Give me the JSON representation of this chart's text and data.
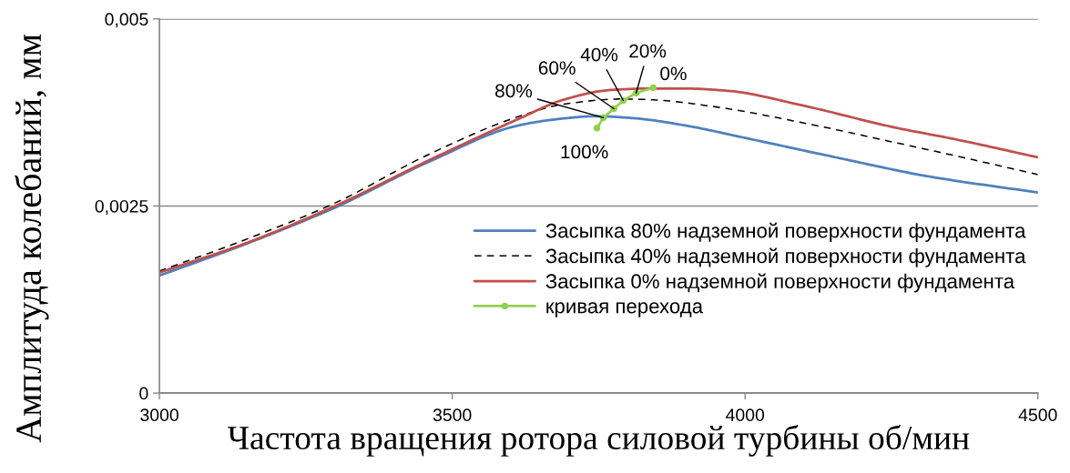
{
  "chart_data": {
    "type": "line",
    "xlabel": "Частота вращения ротора силовой турбины об/мин",
    "ylabel": "Амплитуда колебаний, мм",
    "xlim": [
      3000,
      4500
    ],
    "xticks": [
      3000,
      3500,
      4000,
      4500
    ],
    "ylim": [
      0,
      0.005
    ],
    "yticks": [
      0,
      {
        "value": 0.0025,
        "label": "0,0025"
      },
      {
        "value": 0.005,
        "label": "0,005"
      }
    ],
    "grid": "y",
    "legend": "bottom right",
    "series": [
      {
        "name": "Засыпка 80% надземной поверхности фундамента",
        "color": "#4f81bd",
        "line_style": "solid",
        "marker": "none",
        "x": [
          3000,
          3150,
          3300,
          3460,
          3615,
          3690,
          3745,
          3815,
          3895,
          4000,
          4155,
          4310,
          4500
        ],
        "values": [
          0.00157,
          0.002,
          0.00248,
          0.00309,
          0.00358,
          0.00367,
          0.0037,
          0.00367,
          0.00358,
          0.00341,
          0.00315,
          0.0029,
          0.00268
        ]
      },
      {
        "name": "Засыпка 40% надземной поверхности фундамента",
        "color": "#000000",
        "line_style": "dashed",
        "marker": "none",
        "x": [
          3000,
          3150,
          3300,
          3460,
          3615,
          3690,
          3790,
          3840,
          3945,
          4100,
          4255,
          4360,
          4500
        ],
        "values": [
          0.00163,
          0.00206,
          0.00254,
          0.00319,
          0.0037,
          0.00386,
          0.00393,
          0.00392,
          0.00383,
          0.00361,
          0.00335,
          0.00317,
          0.00292
        ]
      },
      {
        "name": "Засыпка 0% надземной поверхности фундамента",
        "color": "#c0504d",
        "line_style": "solid",
        "marker": "none",
        "x": [
          3000,
          3150,
          3300,
          3460,
          3615,
          3690,
          3770,
          3840,
          3895,
          3970,
          4100,
          4255,
          4360,
          4500
        ],
        "values": [
          0.00161,
          0.00201,
          0.0025,
          0.00311,
          0.00367,
          0.00392,
          0.00405,
          0.00407,
          0.00407,
          0.00404,
          0.00384,
          0.00355,
          0.00339,
          0.00315
        ]
      },
      {
        "name": "кривая перехода",
        "color": "#92d050",
        "line_style": "solid",
        "marker": "circle",
        "x": [
          3747,
          3758,
          3776,
          3792,
          3814,
          3843
        ],
        "values": [
          0.00354,
          0.00368,
          0.0038,
          0.00391,
          0.00401,
          0.00408
        ]
      }
    ],
    "annotations": [
      {
        "text": "100%",
        "x": 3747,
        "y": 0.00354
      },
      {
        "text": "80%",
        "x": 3758,
        "y": 0.00368
      },
      {
        "text": "60%",
        "x": 3776,
        "y": 0.0038
      },
      {
        "text": "40%",
        "x": 3792,
        "y": 0.00391
      },
      {
        "text": "20%",
        "x": 3814,
        "y": 0.00401
      },
      {
        "text": "0%",
        "x": 3843,
        "y": 0.00408
      }
    ]
  }
}
